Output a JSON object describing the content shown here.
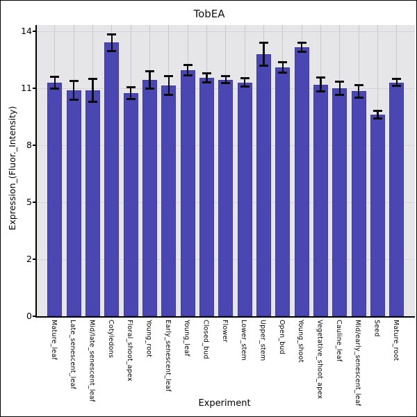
{
  "window": {
    "background": "#ffffff",
    "border_color": "#000000"
  },
  "chart_data": {
    "type": "bar",
    "title": "TobEA",
    "xlabel": "Experiment",
    "ylabel": "Expression_(Fluor._Intensity)",
    "yticks": [
      0,
      2,
      5,
      8,
      11,
      14
    ],
    "ylim": [
      0,
      14.6
    ],
    "grid": true,
    "legend": "none",
    "panel_bg": "#e6e6e9",
    "bar_color": "#4a47b3",
    "bar_edge_color": "#3e3ba6",
    "h_gridline_color": "#d3d3d9",
    "v_gridline_color": "#c8c8d0",
    "error_bar_color": "#0b0b0b",
    "categories": [
      "Mature_leaf",
      "Late_senescent_leaf",
      "Mid/late_senescent_leaf",
      "Cotyledons",
      "Floral_shoot_apex",
      "Young_root",
      "Early_senescent_leaf",
      "Young_leaf",
      "Closed_bud",
      "Flower",
      "Lower_stem",
      "Upper_stem",
      "Open_bud",
      "Young_shoot",
      "Vegetative_shoot_apex",
      "Cauline_leaf",
      "Mid/early_senescent_leaf",
      "Seed",
      "Mature_root"
    ],
    "values": [
      11.3,
      10.9,
      10.9,
      13.4,
      10.75,
      11.45,
      11.15,
      11.95,
      11.55,
      11.45,
      11.3,
      12.8,
      12.1,
      13.15,
      11.2,
      11.0,
      10.85,
      9.6,
      11.3
    ],
    "errors": [
      0.3,
      0.5,
      0.6,
      0.45,
      0.3,
      0.45,
      0.5,
      0.27,
      0.23,
      0.18,
      0.22,
      0.6,
      0.28,
      0.23,
      0.35,
      0.33,
      0.33,
      0.2,
      0.18
    ]
  }
}
